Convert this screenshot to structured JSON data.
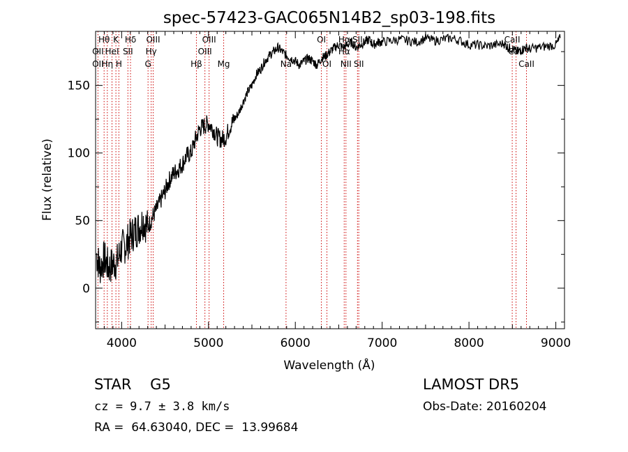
{
  "chart_data": {
    "type": "line",
    "title": "spec-57423-GAC065N14B2_sp03-198.fits",
    "xlabel": "Wavelength (Å)",
    "ylabel": "Flux (relative)",
    "xlim": [
      3700,
      9100
    ],
    "ylim": [
      -30,
      190
    ],
    "xticks": [
      4000,
      5000,
      6000,
      7000,
      8000,
      9000
    ],
    "yticks": [
      0,
      50,
      100,
      150
    ],
    "line_color": "#000000",
    "marker_color": "#cc0000",
    "spectrum": {
      "x": [
        3710,
        3750,
        3800,
        3850,
        3900,
        3950,
        4000,
        4050,
        4100,
        4150,
        4200,
        4250,
        4300,
        4350,
        4400,
        4450,
        4500,
        4550,
        4600,
        4650,
        4700,
        4750,
        4800,
        4850,
        4900,
        4950,
        5000,
        5050,
        5100,
        5150,
        5200,
        5250,
        5300,
        5350,
        5400,
        5450,
        5500,
        5550,
        5600,
        5650,
        5700,
        5750,
        5800,
        5850,
        5900,
        5950,
        6000,
        6050,
        6100,
        6150,
        6200,
        6250,
        6300,
        6350,
        6400,
        6450,
        6500,
        6550,
        6600,
        6650,
        6700,
        6750,
        6800,
        6850,
        6900,
        6950,
        7000,
        7100,
        7200,
        7300,
        7400,
        7500,
        7600,
        7700,
        7800,
        7900,
        8000,
        8100,
        8200,
        8300,
        8400,
        8450,
        8500,
        8550,
        8600,
        8650,
        8700,
        8800,
        8900,
        9000,
        9050
      ],
      "y": [
        25,
        15,
        22,
        15,
        18,
        20,
        30,
        32,
        38,
        42,
        45,
        50,
        45,
        52,
        58,
        65,
        72,
        80,
        85,
        88,
        92,
        98,
        100,
        110,
        118,
        120,
        122,
        118,
        112,
        110,
        112,
        120,
        125,
        130,
        138,
        145,
        150,
        158,
        162,
        168,
        172,
        175,
        178,
        175,
        172,
        170,
        168,
        165,
        168,
        170,
        168,
        165,
        170,
        172,
        175,
        178,
        180,
        178,
        180,
        182,
        178,
        180,
        182,
        184,
        180,
        182,
        182,
        183,
        184,
        183,
        182,
        185,
        183,
        184,
        185,
        183,
        180,
        180,
        179,
        180,
        181,
        178,
        177,
        175,
        176,
        178,
        177,
        178,
        179,
        180,
        185
      ]
    },
    "lines_bottom": [
      {
        "label": "OII",
        "wavelength": 3727
      },
      {
        "label": "Hη",
        "wavelength": 3835
      },
      {
        "label": "H",
        "wavelength": 3968
      },
      {
        "label": "G",
        "wavelength": 4304
      },
      {
        "label": "Hβ",
        "wavelength": 4861
      },
      {
        "label": "Mg",
        "wavelength": 5175
      },
      {
        "label": "Na",
        "wavelength": 5893
      },
      {
        "label": "OI",
        "wavelength": 6364
      },
      {
        "label": "NII",
        "wavelength": 6583
      },
      {
        "label": "SII",
        "wavelength": 6731
      },
      {
        "label": "CaII",
        "wavelength": 8662
      }
    ],
    "lines_middle": [
      {
        "label": "OII",
        "wavelength": 3727
      },
      {
        "label": "HeI",
        "wavelength": 3889
      },
      {
        "label": "SII",
        "wavelength": 4072
      },
      {
        "label": "Hγ",
        "wavelength": 4340
      },
      {
        "label": "OIII",
        "wavelength": 4959
      },
      {
        "label": "Hα",
        "wavelength": 6563
      },
      {
        "label": "CaII",
        "wavelength": 8542
      }
    ],
    "lines_top": [
      {
        "label": "Hθ",
        "wavelength": 3798
      },
      {
        "label": "K",
        "wavelength": 3934
      },
      {
        "label": "Hδ",
        "wavelength": 4102
      },
      {
        "label": "OIII",
        "wavelength": 4363
      },
      {
        "label": "OIII",
        "wavelength": 5007
      },
      {
        "label": "OI",
        "wavelength": 6300
      },
      {
        "label": "Hα",
        "wavelength": 6563
      },
      {
        "label": "SII",
        "wavelength": 6716
      },
      {
        "label": "CaII",
        "wavelength": 8498
      }
    ]
  },
  "info": {
    "star_label": "STAR    G5",
    "cz_text": "cz = 9.7 ± 3.8 km/s",
    "radec_text": "RA =  64.63040, DEC =  13.99684",
    "survey_label": "LAMOST DR5",
    "obs_date_text": "Obs-Date: 20160204"
  }
}
